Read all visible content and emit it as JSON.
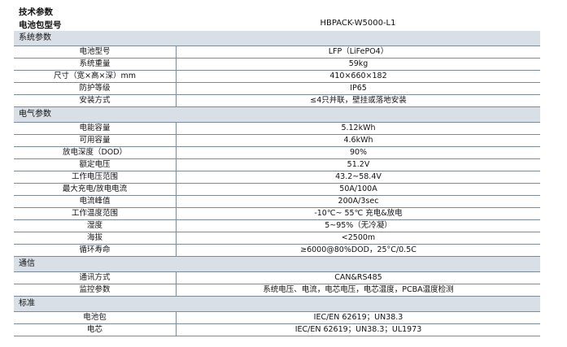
{
  "title": "技术参数",
  "model": {
    "label": "电池包型号",
    "value": "HBPACK-W5000-L1"
  },
  "sections": [
    {
      "name": "系统参数",
      "rows": [
        {
          "k": "电池型号",
          "v": "LFP（LiFePO4）"
        },
        {
          "k": "系统重量",
          "v": "59kg"
        },
        {
          "k": "尺寸（宽×高×深）mm",
          "v": "410×660×182"
        },
        {
          "k": "防护等级",
          "v": "IP65"
        },
        {
          "k": "安装方式",
          "v": "≤4只并联，壁挂或落地安装"
        }
      ]
    },
    {
      "name": "电气参数",
      "rows": [
        {
          "k": "电能容量",
          "v": "5.12kWh"
        },
        {
          "k": "可用容量",
          "v": "4.6kWh"
        },
        {
          "k": "放电深度（DOD）",
          "v": "90%"
        },
        {
          "k": "额定电压",
          "v": "51.2V"
        },
        {
          "k": "工作电压范围",
          "v": "43.2~58.4V"
        },
        {
          "k": "最大充电/放电电流",
          "v": "50A/100A"
        },
        {
          "k": "电流峰值",
          "v": "200A/3sec"
        },
        {
          "k": "工作温度范围",
          "v": "-10℃~ 55℃ 充电&放电"
        },
        {
          "k": "湿度",
          "v": "5~95%（无冷凝）"
        },
        {
          "k": "海拔",
          "v": "<2500m"
        },
        {
          "k": "循环寿命",
          "v": "≥6000@80%DOD，25°C/0.5C"
        }
      ]
    },
    {
      "name": "通信",
      "rows": [
        {
          "k": "通讯方式",
          "v": "CAN&RS485"
        },
        {
          "k": "监控参数",
          "v": "系统电压、电流，电芯电压，电芯温度，PCBA温度检测"
        }
      ]
    },
    {
      "name": "标准",
      "rows": [
        {
          "k": "电池包",
          "v": "IEC/EN 62619；UN38.3"
        },
        {
          "k": "电芯",
          "v": "IEC/EN 62619；UN38.3；UL1973"
        }
      ]
    }
  ]
}
